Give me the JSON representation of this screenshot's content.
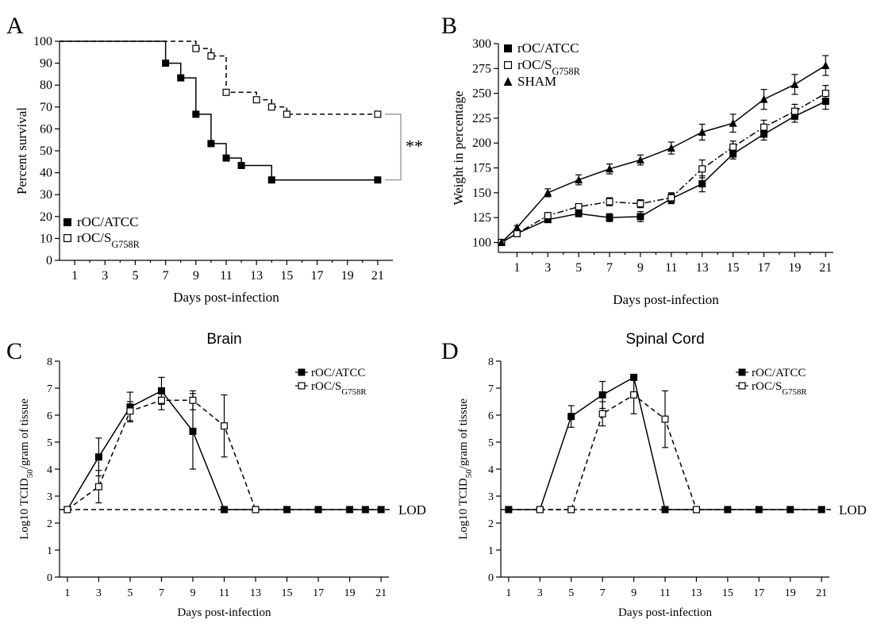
{
  "colors": {
    "ink": "#000000",
    "background": "#ffffff"
  },
  "chart_data": [
    {
      "panel": "A",
      "type": "line",
      "subtype": "kaplan-meier step",
      "title": "",
      "xlabel": "Days post-infection",
      "ylabel": "Percent survival",
      "xlim": [
        0,
        22
      ],
      "ylim": [
        0,
        100
      ],
      "xticks": [
        1,
        3,
        5,
        7,
        9,
        11,
        13,
        15,
        17,
        19,
        21
      ],
      "yticks": [
        0,
        10,
        20,
        30,
        40,
        50,
        60,
        70,
        80,
        90,
        100
      ],
      "legend_position": "bottom-left",
      "significance": "**",
      "series": [
        {
          "name": "rOC/ATCC",
          "sub": "",
          "marker": "filled-square",
          "line": "solid",
          "points": [
            [
              0,
              100
            ],
            [
              7,
              90
            ],
            [
              8,
              83.3
            ],
            [
              9,
              66.7
            ],
            [
              10,
              53.3
            ],
            [
              11,
              46.7
            ],
            [
              12,
              43.3
            ],
            [
              14,
              36.7
            ],
            [
              21,
              36.7
            ]
          ]
        },
        {
          "name": "rOC/S",
          "sub": "G758R",
          "marker": "open-square",
          "line": "dashed",
          "points": [
            [
              0,
              100
            ],
            [
              9,
              96.7
            ],
            [
              10,
              93.3
            ],
            [
              11,
              76.7
            ],
            [
              13,
              73.3
            ],
            [
              14,
              70
            ],
            [
              15,
              66.7
            ],
            [
              21,
              66.7
            ]
          ]
        }
      ]
    },
    {
      "panel": "B",
      "type": "line",
      "title": "",
      "xlabel": "Days post-infection",
      "ylabel": "Weight in percentage",
      "xlim": [
        -0.2,
        21.5
      ],
      "ylim": [
        90,
        300
      ],
      "xticks": [
        1,
        3,
        5,
        7,
        9,
        11,
        13,
        15,
        17,
        19,
        21
      ],
      "yticks": [
        100,
        125,
        150,
        175,
        200,
        225,
        250,
        275,
        300
      ],
      "legend_position": "top-left",
      "series": [
        {
          "name": "rOC/ATCC",
          "sub": "",
          "marker": "filled-square",
          "line": "solid",
          "points": [
            [
              0,
              100,
              0
            ],
            [
              1,
              109,
              2
            ],
            [
              3,
              123,
              3
            ],
            [
              5,
              129,
              3
            ],
            [
              7,
              125,
              4
            ],
            [
              9,
              126,
              5
            ],
            [
              11,
              144,
              5
            ],
            [
              13,
              159,
              8
            ],
            [
              15,
              189,
              5
            ],
            [
              17,
              209,
              6
            ],
            [
              19,
              227,
              6
            ],
            [
              21,
              242,
              8
            ]
          ]
        },
        {
          "name": "rOC/S",
          "sub": "G758R",
          "marker": "open-square",
          "line": "dash-dot",
          "points": [
            [
              0,
              100,
              0
            ],
            [
              1,
              109,
              2
            ],
            [
              3,
              127,
              3
            ],
            [
              5,
              136,
              3
            ],
            [
              7,
              141,
              4
            ],
            [
              9,
              139,
              4
            ],
            [
              11,
              145,
              5
            ],
            [
              13,
              174,
              9
            ],
            [
              15,
              196,
              6
            ],
            [
              17,
              216,
              7
            ],
            [
              19,
              232,
              7
            ],
            [
              21,
              250,
              8
            ]
          ]
        },
        {
          "name": "SHAM",
          "sub": "",
          "marker": "filled-triangle",
          "line": "solid",
          "points": [
            [
              0,
              100,
              0
            ],
            [
              1,
              115,
              2
            ],
            [
              3,
              150,
              4
            ],
            [
              5,
              163,
              5
            ],
            [
              7,
              174,
              5
            ],
            [
              9,
              183,
              5
            ],
            [
              11,
              195,
              6
            ],
            [
              13,
              211,
              8
            ],
            [
              15,
              220,
              9
            ],
            [
              17,
              244,
              10
            ],
            [
              19,
              259,
              10
            ],
            [
              21,
              278,
              10
            ]
          ]
        }
      ]
    },
    {
      "panel": "C",
      "type": "line",
      "title": "Brain",
      "xlabel": "Days post-infection",
      "ylabel": "Log10 TCID",
      "ylabel_sub": "50",
      "ylabel_tail": "/gram of tissue",
      "xlim": [
        0.5,
        21.5
      ],
      "ylim": [
        0,
        8
      ],
      "xticks": [
        1,
        3,
        5,
        7,
        9,
        11,
        13,
        15,
        17,
        19,
        21
      ],
      "yticks": [
        0,
        1,
        2,
        3,
        4,
        5,
        6,
        7,
        8
      ],
      "lod": 2.5,
      "lod_label": "LOD",
      "legend_position": "top-right",
      "series": [
        {
          "name": "rOC/ATCC",
          "sub": "",
          "marker": "filled-square",
          "line": "solid",
          "points": [
            [
              1,
              2.5,
              0
            ],
            [
              3,
              4.45,
              0.7
            ],
            [
              5,
              6.3,
              0.55
            ],
            [
              7,
              6.9,
              0.5
            ],
            [
              9,
              5.4,
              1.4
            ],
            [
              11,
              2.5,
              0
            ],
            [
              13,
              2.5,
              0
            ],
            [
              15,
              2.5,
              0
            ],
            [
              17,
              2.5,
              0
            ],
            [
              19,
              2.5,
              0
            ],
            [
              20,
              2.5,
              0
            ],
            [
              21,
              2.5,
              0
            ]
          ]
        },
        {
          "name": "rOC/S",
          "sub": "G758R",
          "marker": "open-square",
          "line": "dashed",
          "points": [
            [
              1,
              2.5,
              0
            ],
            [
              3,
              3.35,
              0.6
            ],
            [
              5,
              6.15,
              0.35
            ],
            [
              7,
              6.55,
              0.35
            ],
            [
              9,
              6.55,
              0.35
            ],
            [
              11,
              5.6,
              1.15
            ],
            [
              13,
              2.5,
              0
            ]
          ]
        }
      ]
    },
    {
      "panel": "D",
      "type": "line",
      "title": "Spinal Cord",
      "xlabel": "Days post-infection",
      "ylabel": "Log10 TCID",
      "ylabel_sub": "50",
      "ylabel_tail": "/gram of tissue",
      "xlim": [
        0.5,
        21.5
      ],
      "ylim": [
        0,
        8
      ],
      "xticks": [
        1,
        3,
        5,
        7,
        9,
        11,
        13,
        15,
        17,
        19,
        21
      ],
      "yticks": [
        0,
        1,
        2,
        3,
        4,
        5,
        6,
        7,
        8
      ],
      "lod": 2.5,
      "lod_label": "LOD",
      "legend_position": "top-right",
      "series": [
        {
          "name": "rOC/ATCC",
          "sub": "",
          "marker": "filled-square",
          "line": "solid",
          "points": [
            [
              1,
              2.5,
              0
            ],
            [
              3,
              2.5,
              0
            ],
            [
              5,
              5.95,
              0.4
            ],
            [
              7,
              6.75,
              0.5
            ],
            [
              9,
              7.4,
              0.1
            ],
            [
              11,
              2.5,
              0
            ],
            [
              13,
              2.5,
              0
            ],
            [
              15,
              2.5,
              0
            ],
            [
              17,
              2.5,
              0
            ],
            [
              19,
              2.5,
              0
            ],
            [
              21,
              2.5,
              0
            ]
          ]
        },
        {
          "name": "rOC/S",
          "sub": "G758R",
          "marker": "open-square",
          "line": "dashed",
          "points": [
            [
              3,
              2.5,
              0
            ],
            [
              5,
              2.5,
              0
            ],
            [
              7,
              6.05,
              0.45
            ],
            [
              9,
              6.75,
              0.7
            ],
            [
              11,
              5.85,
              1.05
            ],
            [
              13,
              2.5,
              0
            ]
          ]
        }
      ]
    }
  ]
}
